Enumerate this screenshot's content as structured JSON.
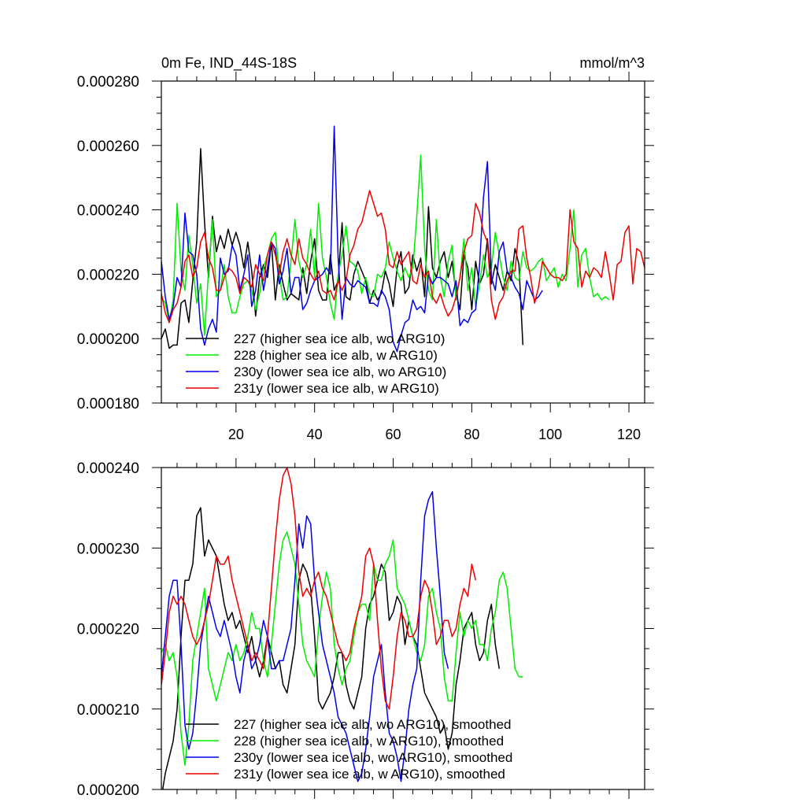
{
  "figure": {
    "title_left": "0m Fe, IND_44S-18S",
    "title_right": "mmol/m^3"
  },
  "chart_data": [
    {
      "type": "line",
      "panel": "top",
      "xlim": [
        1,
        124
      ],
      "ylim": [
        0.00018,
        0.00028
      ],
      "x_ticks": [
        20,
        40,
        60,
        80,
        100,
        120
      ],
      "x_tick_labels": [
        "20",
        "40",
        "60",
        "80",
        "100",
        "120"
      ],
      "y_ticks": [
        0.00018,
        0.0002,
        0.00022,
        0.00024,
        0.00026,
        0.00028
      ],
      "y_tick_labels": [
        "0.000180",
        "0.000200",
        "0.000220",
        "0.000240",
        "0.000260",
        "0.000280"
      ],
      "legend_position": "lower-left",
      "series": [
        {
          "name": "227 (higher sea ice alb, wo ARG10)",
          "color": "#000000",
          "x_start": 1,
          "values": [
            0.0002,
            0.000203,
            0.000197,
            0.000198,
            0.000198,
            0.000211,
            0.000212,
            0.000205,
            0.000218,
            0.00023,
            0.000259,
            0.000236,
            0.000219,
            0.000238,
            0.000227,
            0.000232,
            0.000228,
            0.000234,
            0.000229,
            0.000233,
            0.000229,
            0.000222,
            0.00023,
            0.000221,
            0.000207,
            0.000219,
            0.000223,
            0.000219,
            0.00023,
            0.000212,
            0.000223,
            0.000217,
            0.000212,
            0.000214,
            0.000213,
            0.000212,
            0.000222,
            0.000214,
            0.000224,
            0.000231,
            0.000215,
            0.000212,
            0.000212,
            0.000226,
            0.000215,
            0.000218,
            0.000236,
            0.000213,
            0.000212,
            0.00022,
            0.000224,
            0.000221,
            0.000218,
            0.000211,
            0.000215,
            0.000212,
            0.000214,
            0.000221,
            0.000217,
            0.00021,
            0.000222,
            0.000227,
            0.000214,
            0.000216,
            0.000226,
            0.000221,
            0.000225,
            0.000213,
            0.000241,
            0.000222,
            0.000219,
            0.000224,
            0.000227,
            0.000219,
            0.000224,
            0.000214,
            0.000209,
            0.000226,
            0.000222,
            0.000209,
            0.000224,
            0.000217,
            0.00022,
            0.000231,
            0.000217,
            0.000223,
            0.000219,
            0.000215,
            0.000221,
            0.000218,
            0.000228,
            0.000223,
            0.000198
          ]
        },
        {
          "name": "228 (higher sea ice alb, w ARG10)",
          "color": "#00ee00",
          "x_start": 1,
          "values": [
            0.000213,
            0.000211,
            0.000205,
            0.000212,
            0.000242,
            0.000221,
            0.000215,
            0.000232,
            0.000223,
            0.000211,
            0.000217,
            0.000201,
            0.000221,
            0.000237,
            0.000213,
            0.000215,
            0.000223,
            0.000213,
            0.000208,
            0.000208,
            0.000213,
            0.000217,
            0.000218,
            0.000215,
            0.000209,
            0.000214,
            0.000222,
            0.000226,
            0.000231,
            0.000233,
            0.00022,
            0.000212,
            0.000213,
            0.000224,
            0.000237,
            0.000224,
            0.000219,
            0.000223,
            0.000234,
            0.000219,
            0.000242,
            0.000225,
            0.000219,
            0.000211,
            0.000206,
            0.00022,
            0.000226,
            0.000235,
            0.000224,
            0.000223,
            0.000221,
            0.000214,
            0.000219,
            0.000214,
            0.000213,
            0.00022,
            0.000219,
            0.000222,
            0.00023,
            0.000225,
            0.000221,
            0.000218,
            0.000222,
            0.000219,
            0.000222,
            0.000238,
            0.000257,
            0.000228,
            0.000215,
            0.000212,
            0.000237,
            0.000219,
            0.000213,
            0.000224,
            0.000229,
            0.000212,
            0.000219,
            0.000231,
            0.000215,
            0.000222,
            0.00021,
            0.000217,
            0.000226,
            0.000219,
            0.000222,
            0.000233,
            0.000226,
            0.000219,
            0.000215,
            0.000224,
            0.000219,
            0.000218,
            0.000227,
            0.000222,
            0.000221,
            0.000222,
            0.000224,
            0.000225,
            0.000218,
            0.00022,
            0.000222,
            0.000216,
            0.00022,
            0.000218,
            0.000228,
            0.00024,
            0.000216,
            0.000226,
            0.000228,
            0.000219,
            0.000213,
            0.000214,
            0.000212,
            0.000213,
            0.000212
          ]
        },
        {
          "name": "230y (lower sea ice alb, wo ARG10)",
          "color": "#0000ee",
          "x_start": 1,
          "values": [
            0.000224,
            0.000213,
            0.000206,
            0.00021,
            0.000219,
            0.000216,
            0.000239,
            0.000227,
            0.000226,
            0.00022,
            0.000203,
            0.000198,
            0.000203,
            0.000206,
            0.000202,
            0.000225,
            0.00022,
            0.000221,
            0.000229,
            0.000226,
            0.000215,
            0.00022,
            0.000226,
            0.00021,
            0.000215,
            0.000226,
            0.000215,
            0.000222,
            0.00023,
            0.000228,
            0.000217,
            0.000221,
            0.000228,
            0.000214,
            0.000219,
            0.000219,
            0.000209,
            0.000211,
            0.000215,
            0.000218,
            0.000219,
            0.00022,
            0.000222,
            0.00022,
            0.000266,
            0.000225,
            0.000206,
            0.000219,
            0.000217,
            0.000216,
            0.000218,
            0.000217,
            0.000216,
            0.000211,
            0.000211,
            0.00021,
            0.000215,
            0.000213,
            0.000209,
            0.000199,
            0.000196,
            0.000201,
            0.000205,
            0.000206,
            0.000212,
            0.000209,
            0.00021,
            0.000208,
            0.00022,
            0.000217,
            0.000219,
            0.000219,
            0.000218,
            0.000217,
            0.000213,
            0.000218,
            0.000204,
            0.000206,
            0.000205,
            0.000208,
            0.000209,
            0.000223,
            0.000244,
            0.000255,
            0.000219,
            0.000215,
            0.000227,
            0.00023,
            0.000221,
            0.000219,
            0.000216,
            0.000214,
            0.000209,
            0.000218,
            0.000215,
            0.000212,
            0.000213,
            0.000215
          ]
        },
        {
          "name": "231y (lower sea ice alb, w ARG10)",
          "color": "#ee0000",
          "x_start": 1,
          "values": [
            0.000214,
            0.000208,
            0.000205,
            0.000209,
            0.000211,
            0.000216,
            0.000224,
            0.000226,
            0.000219,
            0.000222,
            0.00023,
            0.000233,
            0.000225,
            0.000222,
            0.000215,
            0.000215,
            0.000219,
            0.000222,
            0.000221,
            0.000219,
            0.000214,
            0.000219,
            0.000218,
            0.000216,
            0.000223,
            0.00022,
            0.000218,
            0.000226,
            0.00023,
            0.000226,
            0.00022,
            0.000227,
            0.000231,
            0.000226,
            0.000223,
            0.000231,
            0.000225,
            0.000223,
            0.00022,
            0.000218,
            0.000221,
            0.000215,
            0.000214,
            0.000215,
            0.000212,
            0.000218,
            0.000215,
            0.000218,
            0.000226,
            0.000229,
            0.000234,
            0.000236,
            0.000241,
            0.000246,
            0.000242,
            0.000238,
            0.000239,
            0.000234,
            0.000223,
            0.000222,
            0.000227,
            0.000223,
            0.000225,
            0.000227,
            0.000218,
            0.000217,
            0.000223,
            0.000219,
            0.000221,
            0.000213,
            0.000211,
            0.000214,
            0.00021,
            0.000207,
            0.000209,
            0.000213,
            0.000219,
            0.000227,
            0.000231,
            0.000232,
            0.000242,
            0.000239,
            0.000233,
            0.00023,
            0.000212,
            0.000206,
            0.000211,
            0.000213,
            0.000218,
            0.000221,
            0.000221,
            0.000234,
            0.000235,
            0.000225,
            0.000219,
            0.000211,
            0.000216,
            0.000224,
            0.000222,
            0.00022,
            0.000219,
            0.000219,
            0.000218,
            0.00022,
            0.00024,
            0.00023,
            0.000228,
            0.000216,
            0.000221,
            0.000219,
            0.000222,
            0.000221,
            0.000219,
            0.000227,
            0.00022,
            0.000212,
            0.000223,
            0.000224,
            0.000233,
            0.000235,
            0.000217,
            0.000228,
            0.000227,
            0.000222
          ]
        }
      ]
    },
    {
      "type": "line",
      "panel": "bottom",
      "xlim": [
        1,
        124
      ],
      "ylim": [
        0.0002,
        0.00024
      ],
      "x_ticks": [
        20,
        40,
        60,
        80,
        100,
        120
      ],
      "y_ticks": [
        0.0002,
        0.00021,
        0.00022,
        0.00023,
        0.00024
      ],
      "y_tick_labels": [
        "0.000200",
        "0.000210",
        "0.000220",
        "0.000230",
        "0.000240"
      ],
      "legend_position": "lower-left",
      "series": [
        {
          "name": "227 (higher sea ice alb, wo ARG10), smoothed",
          "color": "#000000",
          "x_start": 1,
          "values": [
            0.000199,
            0.000202,
            0.000204,
            0.000206,
            0.00021,
            0.000219,
            0.000226,
            0.000226,
            0.000228,
            0.000234,
            0.000235,
            0.000229,
            0.000231,
            0.00023,
            0.000229,
            0.000226,
            0.000223,
            0.000221,
            0.000222,
            0.00022,
            0.000221,
            0.000219,
            0.000217,
            0.000219,
            0.000216,
            0.000214,
            0.000216,
            0.000219,
            0.000217,
            0.000215,
            0.000216,
            0.000213,
            0.000212,
            0.000215,
            0.000218,
            0.000226,
            0.000228,
            0.000227,
            0.000225,
            0.000219,
            0.000211,
            0.00021,
            0.000211,
            0.000212,
            0.000214,
            0.000217,
            0.000217,
            0.000213,
            0.000211,
            0.00021,
            0.000212,
            0.000214,
            0.00022,
            0.000223,
            0.000224,
            0.000226,
            0.000228,
            0.000227,
            0.000221,
            0.000222,
            0.000224,
            0.000223,
            0.000218,
            0.000221,
            0.000219,
            0.000218,
            0.000215,
            0.000212,
            0.000211,
            0.00021,
            0.000209,
            0.000207,
            0.000208,
            0.000205,
            0.000207,
            0.000213,
            0.000216,
            0.00022,
            0.000221,
            0.000222,
            0.000218,
            0.000216,
            0.000217,
            0.000221,
            0.000223,
            0.000218,
            0.000215
          ]
        },
        {
          "name": "228 (higher sea ice alb, w ARG10), smoothed",
          "color": "#00ee00",
          "x_start": 1,
          "values": [
            0.000217,
            0.000218,
            0.000216,
            0.000217,
            0.000214,
            0.000207,
            0.000203,
            0.000208,
            0.000216,
            0.000219,
            0.000222,
            0.000225,
            0.000215,
            0.000213,
            0.000211,
            0.000213,
            0.000215,
            0.000217,
            0.000216,
            0.000218,
            0.000216,
            0.000217,
            0.000219,
            0.000222,
            0.00022,
            0.00022,
            0.000216,
            0.000214,
            0.000218,
            0.000223,
            0.000228,
            0.000231,
            0.000232,
            0.00023,
            0.000228,
            0.000223,
            0.000218,
            0.000216,
            0.000215,
            0.000214,
            0.00022,
            0.000224,
            0.000227,
            0.000225,
            0.000218,
            0.000215,
            0.000213,
            0.000215,
            0.000216,
            0.000219,
            0.000222,
            0.000223,
            0.000223,
            0.000221,
            0.000228,
            0.000226,
            0.000226,
            0.000228,
            0.000229,
            0.000231,
            0.000225,
            0.000224,
            0.000223,
            0.000221,
            0.000219,
            0.000217,
            0.000216,
            0.000218,
            0.000224,
            0.000225,
            0.000222,
            0.00022,
            0.000214,
            0.000211,
            0.000211,
            0.000217,
            0.000222,
            0.000219,
            0.000221,
            0.00022,
            0.000221,
            0.000218,
            0.000218,
            0.000216,
            0.00022,
            0.000222,
            0.000226,
            0.000227,
            0.000225,
            0.00022,
            0.000215,
            0.000214,
            0.000214
          ]
        },
        {
          "name": "230y (lower sea ice alb, wo ARG10), smoothed",
          "color": "#0000ee",
          "x_start": 1,
          "values": [
            0.000214,
            0.000219,
            0.000224,
            0.000226,
            0.000226,
            0.000218,
            0.000208,
            0.000205,
            0.000207,
            0.000212,
            0.000218,
            0.000221,
            0.000224,
            0.000222,
            0.00022,
            0.000219,
            0.000221,
            0.000219,
            0.000217,
            0.000214,
            0.000212,
            0.000216,
            0.000218,
            0.000215,
            0.000216,
            0.000218,
            0.000221,
            0.000219,
            0.000215,
            0.000215,
            0.000216,
            0.000216,
            0.000218,
            0.00022,
            0.000226,
            0.000233,
            0.00023,
            0.000234,
            0.000233,
            0.000226,
            0.000222,
            0.000218,
            0.000216,
            0.000214,
            0.000212,
            0.000209,
            0.000208,
            0.000207,
            0.000205,
            0.000203,
            0.000201,
            0.000202,
            0.000205,
            0.000209,
            0.000214,
            0.000216,
            0.000218,
            0.000212,
            0.000207,
            0.000206,
            0.000204,
            0.000201,
            0.000205,
            0.00021,
            0.000213,
            0.000215,
            0.000226,
            0.000234,
            0.000236,
            0.000237,
            0.00023,
            0.000224,
            0.000217,
            0.000215
          ]
        },
        {
          "name": "231y (lower sea ice alb, w ARG10), smoothed",
          "color": "#ee0000",
          "x_start": 1,
          "values": [
            0.000213,
            0.000217,
            0.000222,
            0.000224,
            0.000223,
            0.000224,
            0.000223,
            0.000221,
            0.000219,
            0.000218,
            0.000219,
            0.000221,
            0.000223,
            0.000226,
            0.000229,
            0.000228,
            0.000228,
            0.000229,
            0.000226,
            0.000224,
            0.000222,
            0.00022,
            0.000218,
            0.000216,
            0.000217,
            0.000216,
            0.000215,
            0.000219,
            0.000225,
            0.000231,
            0.000236,
            0.000239,
            0.00024,
            0.000238,
            0.000234,
            0.000227,
            0.000224,
            0.000225,
            0.000224,
            0.000226,
            0.000227,
            0.000225,
            0.000224,
            0.000222,
            0.00022,
            0.000218,
            0.000217,
            0.000216,
            0.000217,
            0.00022,
            0.000222,
            0.000224,
            0.000229,
            0.00023,
            0.000228,
            0.000221,
            0.000215,
            0.000211,
            0.00021,
            0.000214,
            0.000219,
            0.000222,
            0.000221,
            0.000219,
            0.000219,
            0.00022,
            0.000224,
            0.000226,
            0.000225,
            0.000222,
            0.000218,
            0.000219,
            0.000221,
            0.000221,
            0.000219,
            0.00022,
            0.000223,
            0.000225,
            0.000224,
            0.000228,
            0.000226
          ]
        }
      ]
    }
  ]
}
